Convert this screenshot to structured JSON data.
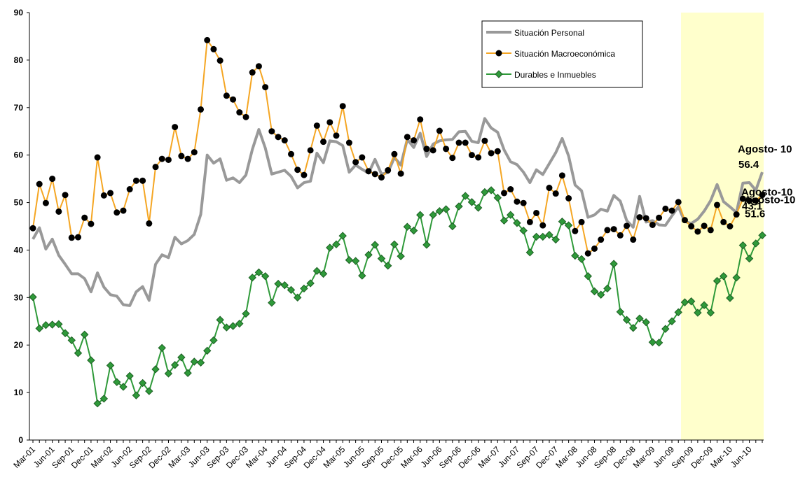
{
  "chart_data": {
    "type": "line",
    "categories": [
      "Mar-01",
      null,
      null,
      "Jun-01",
      null,
      null,
      "Sep-01",
      null,
      null,
      "Dec-01",
      null,
      null,
      "Mar-02",
      null,
      null,
      "Jun-02",
      null,
      null,
      "Sep-02",
      null,
      null,
      "Dec-02",
      null,
      null,
      "Mar-03",
      null,
      null,
      "Jun-03",
      null,
      null,
      "Sep-03",
      null,
      null,
      "Dec-03",
      null,
      null,
      "Mar-04",
      null,
      null,
      "Jun-04",
      null,
      null,
      "Sep-04",
      null,
      null,
      "Dec-04",
      null,
      null,
      "Mar-05",
      null,
      null,
      "Jun-05",
      null,
      null,
      "Sep-05",
      null,
      null,
      "Dec-05",
      null,
      null,
      "Mar-06",
      null,
      null,
      "Jun-06",
      null,
      null,
      "Sep-06",
      null,
      null,
      "Dec-06",
      null,
      null,
      "Mar-07",
      null,
      null,
      "Jun-07",
      null,
      null,
      "Sep-07",
      null,
      null,
      "Dec-07",
      null,
      null,
      "Mar-08",
      null,
      null,
      "Jun-08",
      null,
      null,
      "Sep-08",
      null,
      null,
      "Dec-08",
      null,
      null,
      "Mar-09",
      null,
      null,
      "Jun-09",
      null,
      null,
      "Sep-09",
      null,
      null,
      "Dec-09",
      null,
      null,
      "Mar-10",
      null,
      null,
      "Jun-10",
      null,
      null
    ],
    "series": [
      {
        "name": "Situación Personal",
        "color": "#999999",
        "marker": null,
        "values": [
          42.3,
          44.7,
          40.2,
          42.3,
          38.9,
          37,
          35,
          35,
          34,
          31.2,
          35.2,
          32.2,
          30.6,
          30.3,
          28.5,
          28.3,
          31.2,
          32.3,
          29.4,
          37,
          39,
          38.4,
          42.7,
          41.3,
          42,
          43.3,
          47.5,
          60,
          58.3,
          59.2,
          54.7,
          55.2,
          54.2,
          55.8,
          61.2,
          65.4,
          61.5,
          56,
          56.4,
          56.8,
          55.5,
          53.1,
          54.2,
          54.5,
          60.4,
          58.4,
          63,
          62.8,
          62,
          56.4,
          57.9,
          57,
          56.2,
          59.1,
          56,
          56.3,
          59.5,
          57.9,
          63.3,
          61.6,
          64.6,
          59.7,
          62.3,
          63,
          63.2,
          63.3,
          64.9,
          65,
          62.9,
          62.6,
          67.7,
          65.7,
          64.8,
          61.1,
          58.6,
          58,
          56.4,
          54.2,
          56.9,
          55.9,
          58.2,
          60.5,
          63.5,
          59.8,
          53.7,
          52.5,
          46.9,
          47.4,
          48.6,
          48.2,
          51.5,
          50.3,
          46.2,
          44.8,
          51.3,
          45.9,
          46.2,
          45.3,
          45.2,
          47.2,
          49.1,
          46,
          45.6,
          46.5,
          48.2,
          50.4,
          53.8,
          50.2,
          49.1,
          47.9,
          54.1,
          54.2,
          52.6,
          56.4
        ]
      },
      {
        "name": "Situación Macroeconómica",
        "color": "#f5a623",
        "marker": "circle",
        "values": [
          44.6,
          53.9,
          49.9,
          55,
          48.1,
          51.6,
          42.6,
          42.7,
          46.8,
          45.5,
          59.5,
          51.5,
          52,
          47.9,
          48.3,
          52.8,
          54.6,
          54.6,
          45.6,
          57.5,
          59.2,
          59,
          65.9,
          59.8,
          59.2,
          60.6,
          69.6,
          84.2,
          82.3,
          79.9,
          72.5,
          71.7,
          69,
          68,
          77.4,
          78.7,
          74.3,
          65,
          63.8,
          63.1,
          60.2,
          56.9,
          55.8,
          61,
          66.2,
          62.8,
          66.9,
          64.1,
          70.3,
          62.6,
          58.5,
          59.5,
          56.6,
          56,
          55.3,
          56.8,
          60.2,
          56.1,
          63.8,
          63.1,
          67.5,
          61.3,
          61,
          65.1,
          61.3,
          59.4,
          62.6,
          62.6,
          60,
          59.5,
          63,
          60.4,
          60.8,
          52,
          52.8,
          50.2,
          49.9,
          45.9,
          47.8,
          45.2,
          53.1,
          51.9,
          55.7,
          50.9,
          44,
          45.9,
          39.3,
          40.3,
          42.2,
          44.2,
          44.4,
          43.1,
          45.1,
          42.2,
          46.9,
          46.7,
          45.3,
          46.8,
          48.7,
          48.3,
          50.1,
          46.3,
          45,
          43.9,
          45.1,
          44.2,
          49.5,
          45.9,
          45,
          47.5,
          50.8,
          50.4,
          50.4,
          51.6
        ]
      },
      {
        "name": "Durables e Inmuebles",
        "color": "#2f9a3a",
        "marker": "diamond",
        "values": [
          30.1,
          23.5,
          24.2,
          24.3,
          24.4,
          22.5,
          21,
          18.3,
          22.2,
          16.8,
          7.7,
          8.7,
          15.7,
          12.2,
          11.2,
          13.5,
          9.4,
          12,
          10.3,
          14.9,
          19.4,
          14,
          15.8,
          17.4,
          14.1,
          16.5,
          16.3,
          18.8,
          21,
          25.3,
          23.7,
          24,
          24.5,
          26.6,
          34.2,
          35.3,
          34.5,
          28.9,
          32.9,
          32.6,
          31.6,
          30,
          31.9,
          33,
          35.6,
          35,
          40.5,
          41.2,
          43,
          37.9,
          37.7,
          34.6,
          39,
          41.1,
          38.2,
          36.7,
          41.2,
          38.7,
          44.9,
          44.1,
          47.4,
          41.1,
          47.4,
          48.2,
          48.6,
          45,
          49.2,
          51.4,
          50.1,
          48.9,
          52.2,
          52.6,
          51,
          46.2,
          47.4,
          45.7,
          44.1,
          39.5,
          42.8,
          42.8,
          43.2,
          42.2,
          46,
          45.2,
          38.8,
          38.1,
          34.5,
          31.3,
          30.6,
          31.9,
          37.1,
          27,
          25.3,
          23.6,
          25.6,
          24.8,
          20.6,
          20.5,
          23.4,
          25,
          26.9,
          29,
          29.2,
          26.8,
          28.4,
          26.8,
          33.5,
          34.5,
          29.9,
          34.2,
          41,
          38.2,
          41.4,
          43.1
        ]
      }
    ],
    "annotations": [
      {
        "label": "Agosto- 10",
        "value": 56.4
      },
      {
        "label": "Agosto-10",
        "value": 51.6
      },
      {
        "label": "Agosto-10",
        "value": 43.1
      }
    ],
    "ylim": [
      0,
      90
    ],
    "yticks": [
      0,
      10,
      20,
      30,
      40,
      50,
      60,
      70,
      80,
      90
    ],
    "grid": false,
    "legend": "top-right"
  }
}
